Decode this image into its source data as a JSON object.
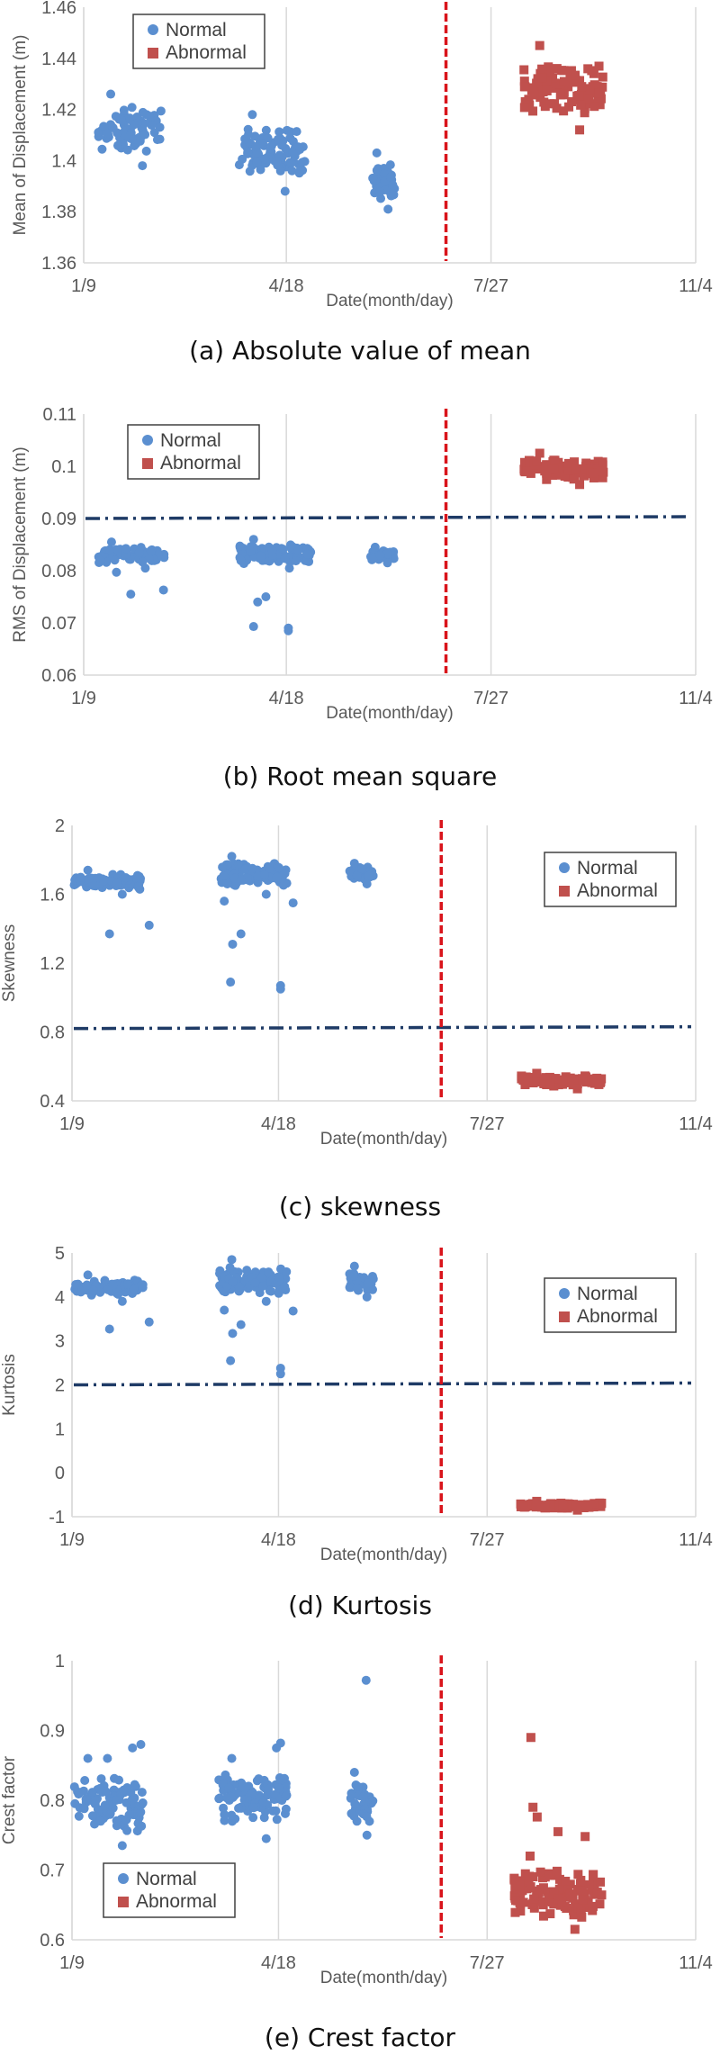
{
  "figure": {
    "colors": {
      "normal": "#5b8fd0",
      "abnormal": "#c0504d",
      "divider": "#d9141b",
      "threshold": "#1f3b66",
      "grid": "#d9d9d9"
    }
  },
  "chart_data": [
    {
      "type": "scatter",
      "id": "a",
      "caption": "(a) Absolute value of mean",
      "ylabel": "Mean of Displacement (m)",
      "xlabel": "Date(month/day)",
      "ylim": [
        1.36,
        1.46
      ],
      "y_ticks": [
        "1.36",
        "1.38",
        "1.4",
        "1.42",
        "1.44",
        "1.46"
      ],
      "x_ticks": [
        "1/9",
        "4/18",
        "7/27",
        "11/4"
      ],
      "grid": "vertical",
      "legend_position": "top-left",
      "divider_date": "7/5",
      "threshold": null,
      "series": [
        {
          "name": "Normal",
          "marker": "circle",
          "clusters": [
            {
              "from": "1/16",
              "to": "2/16",
              "y_min": 1.398,
              "y_max": 1.426,
              "n": 75
            },
            {
              "from": "3/26",
              "to": "4/27",
              "y_min": 1.388,
              "y_max": 1.418,
              "n": 95
            },
            {
              "from": "5/30",
              "to": "6/10",
              "y_min": 1.381,
              "y_max": 1.403,
              "n": 40
            }
          ]
        },
        {
          "name": "Abnormal",
          "marker": "square",
          "clusters": [
            {
              "from": "8/12",
              "to": "9/20",
              "y_min": 1.412,
              "y_max": 1.445,
              "n": 100
            }
          ]
        }
      ]
    },
    {
      "type": "scatter",
      "id": "b",
      "caption": "(b) Root mean square",
      "ylabel": "RMS of Displacement (m)",
      "xlabel": "Date(month/day)",
      "ylim": [
        0.06,
        0.11
      ],
      "y_ticks": [
        "0.06",
        "0.07",
        "0.08",
        "0.09",
        "0.1",
        "0.11"
      ],
      "x_ticks": [
        "1/9",
        "4/18",
        "7/27",
        "11/4"
      ],
      "grid": "vertical",
      "legend_position": "top-left",
      "divider_date": "7/5",
      "threshold": 0.09,
      "series": [
        {
          "name": "Normal",
          "marker": "circle",
          "clusters": [
            {
              "from": "1/16",
              "to": "2/18",
              "y_min": 0.0805,
              "y_max": 0.0855,
              "n": 80
            },
            {
              "from": "3/26",
              "to": "4/30",
              "y_min": 0.0805,
              "y_max": 0.086,
              "n": 95
            },
            {
              "from": "5/29",
              "to": "6/10",
              "y_min": 0.0815,
              "y_max": 0.0845,
              "n": 35
            }
          ],
          "outliers": [
            [
              "1/25",
              0.0797
            ],
            [
              "2/1",
              0.0755
            ],
            [
              "2/17",
              0.0763
            ],
            [
              "4/2",
              0.0693
            ],
            [
              "4/4",
              0.074
            ],
            [
              "4/8",
              0.075
            ],
            [
              "4/19",
              0.0685
            ],
            [
              "4/19",
              0.069
            ]
          ]
        },
        {
          "name": "Abnormal",
          "marker": "square",
          "clusters": [
            {
              "from": "8/12",
              "to": "9/20",
              "y_min": 0.0965,
              "y_max": 0.1025,
              "n": 100
            }
          ]
        }
      ]
    },
    {
      "type": "scatter",
      "id": "c",
      "caption": "(c) skewness",
      "ylabel": "Skewness",
      "xlabel": "Date(month/day)",
      "ylim": [
        0.4,
        2.0
      ],
      "y_ticks": [
        "0.4",
        "0.8",
        "1.2",
        "1.6",
        "2"
      ],
      "x_ticks": [
        "1/9",
        "4/18",
        "7/27",
        "11/4"
      ],
      "grid": "vertical",
      "legend_position": "top-right",
      "divider_date": "7/5",
      "threshold": 0.82,
      "series": [
        {
          "name": "Normal",
          "marker": "circle",
          "clusters": [
            {
              "from": "1/10",
              "to": "2/12",
              "y_min": 1.6,
              "y_max": 1.74,
              "n": 80
            },
            {
              "from": "3/20",
              "to": "4/22",
              "y_min": 1.6,
              "y_max": 1.82,
              "n": 95
            },
            {
              "from": "5/22",
              "to": "6/3",
              "y_min": 1.66,
              "y_max": 1.78,
              "n": 35
            }
          ],
          "outliers": [
            [
              "1/27",
              1.37
            ],
            [
              "2/15",
              1.42
            ],
            [
              "3/23",
              1.56
            ],
            [
              "3/27",
              1.31
            ],
            [
              "3/31",
              1.37
            ],
            [
              "3/26",
              1.09
            ],
            [
              "4/19",
              1.07
            ],
            [
              "4/19",
              1.05
            ],
            [
              "4/25",
              1.55
            ]
          ]
        },
        {
          "name": "Abnormal",
          "marker": "square",
          "clusters": [
            {
              "from": "8/12",
              "to": "9/20",
              "y_min": 0.47,
              "y_max": 0.56,
              "n": 100
            }
          ]
        }
      ]
    },
    {
      "type": "scatter",
      "id": "d",
      "caption": "(d) Kurtosis",
      "ylabel": "Kurtosis",
      "xlabel": "Date(month/day)",
      "ylim": [
        -1,
        5
      ],
      "y_ticks": [
        "-1",
        "0",
        "1",
        "2",
        "3",
        "4",
        "5"
      ],
      "x_ticks": [
        "1/9",
        "4/18",
        "7/27",
        "11/4"
      ],
      "grid": "vertical",
      "legend_position": "top-right",
      "divider_date": "7/5",
      "threshold": 2.0,
      "series": [
        {
          "name": "Normal",
          "marker": "circle",
          "clusters": [
            {
              "from": "1/10",
              "to": "2/12",
              "y_min": 3.9,
              "y_max": 4.5,
              "n": 80
            },
            {
              "from": "3/20",
              "to": "4/22",
              "y_min": 3.9,
              "y_max": 4.85,
              "n": 95
            },
            {
              "from": "5/22",
              "to": "6/3",
              "y_min": 4.0,
              "y_max": 4.7,
              "n": 35
            }
          ],
          "outliers": [
            [
              "1/27",
              3.27
            ],
            [
              "2/15",
              3.43
            ],
            [
              "3/23",
              3.7
            ],
            [
              "3/27",
              3.17
            ],
            [
              "3/31",
              3.37
            ],
            [
              "3/26",
              2.55
            ],
            [
              "4/19",
              2.38
            ],
            [
              "4/19",
              2.25
            ],
            [
              "4/25",
              3.68
            ]
          ]
        },
        {
          "name": "Abnormal",
          "marker": "square",
          "clusters": [
            {
              "from": "8/12",
              "to": "9/20",
              "y_min": -0.85,
              "y_max": -0.65,
              "n": 100
            }
          ]
        }
      ]
    },
    {
      "type": "scatter",
      "id": "e",
      "caption": "(e) Crest factor",
      "ylabel": "Crest factor",
      "xlabel": "Date(month/day)",
      "ylim": [
        0.6,
        1.0
      ],
      "y_ticks": [
        "0.6",
        "0.7",
        "0.8",
        "0.9",
        "1"
      ],
      "x_ticks": [
        "1/9",
        "4/18",
        "7/27",
        "11/4"
      ],
      "grid": "vertical",
      "legend_position": "bottom-left",
      "divider_date": "7/5",
      "threshold": null,
      "series": [
        {
          "name": "Normal",
          "marker": "circle",
          "clusters": [
            {
              "from": "1/10",
              "to": "2/12",
              "y_min": 0.735,
              "y_max": 0.86,
              "n": 85
            },
            {
              "from": "3/20",
              "to": "4/22",
              "y_min": 0.745,
              "y_max": 0.86,
              "n": 95
            },
            {
              "from": "5/22",
              "to": "6/3",
              "y_min": 0.75,
              "y_max": 0.84,
              "n": 35
            }
          ],
          "outliers": [
            [
              "1/26",
              0.86
            ],
            [
              "2/7",
              0.875
            ],
            [
              "2/11",
              0.88
            ],
            [
              "4/17",
              0.875
            ],
            [
              "4/19",
              0.882
            ],
            [
              "5/30",
              0.972
            ]
          ]
        },
        {
          "name": "Abnormal",
          "marker": "square",
          "clusters": [
            {
              "from": "8/8",
              "to": "9/20",
              "y_min": 0.615,
              "y_max": 0.72,
              "n": 110
            }
          ],
          "outliers": [
            [
              "8/17",
              0.89
            ],
            [
              "8/18",
              0.79
            ],
            [
              "8/20",
              0.776
            ],
            [
              "8/30",
              0.755
            ],
            [
              "9/12",
              0.748
            ]
          ]
        }
      ]
    }
  ]
}
